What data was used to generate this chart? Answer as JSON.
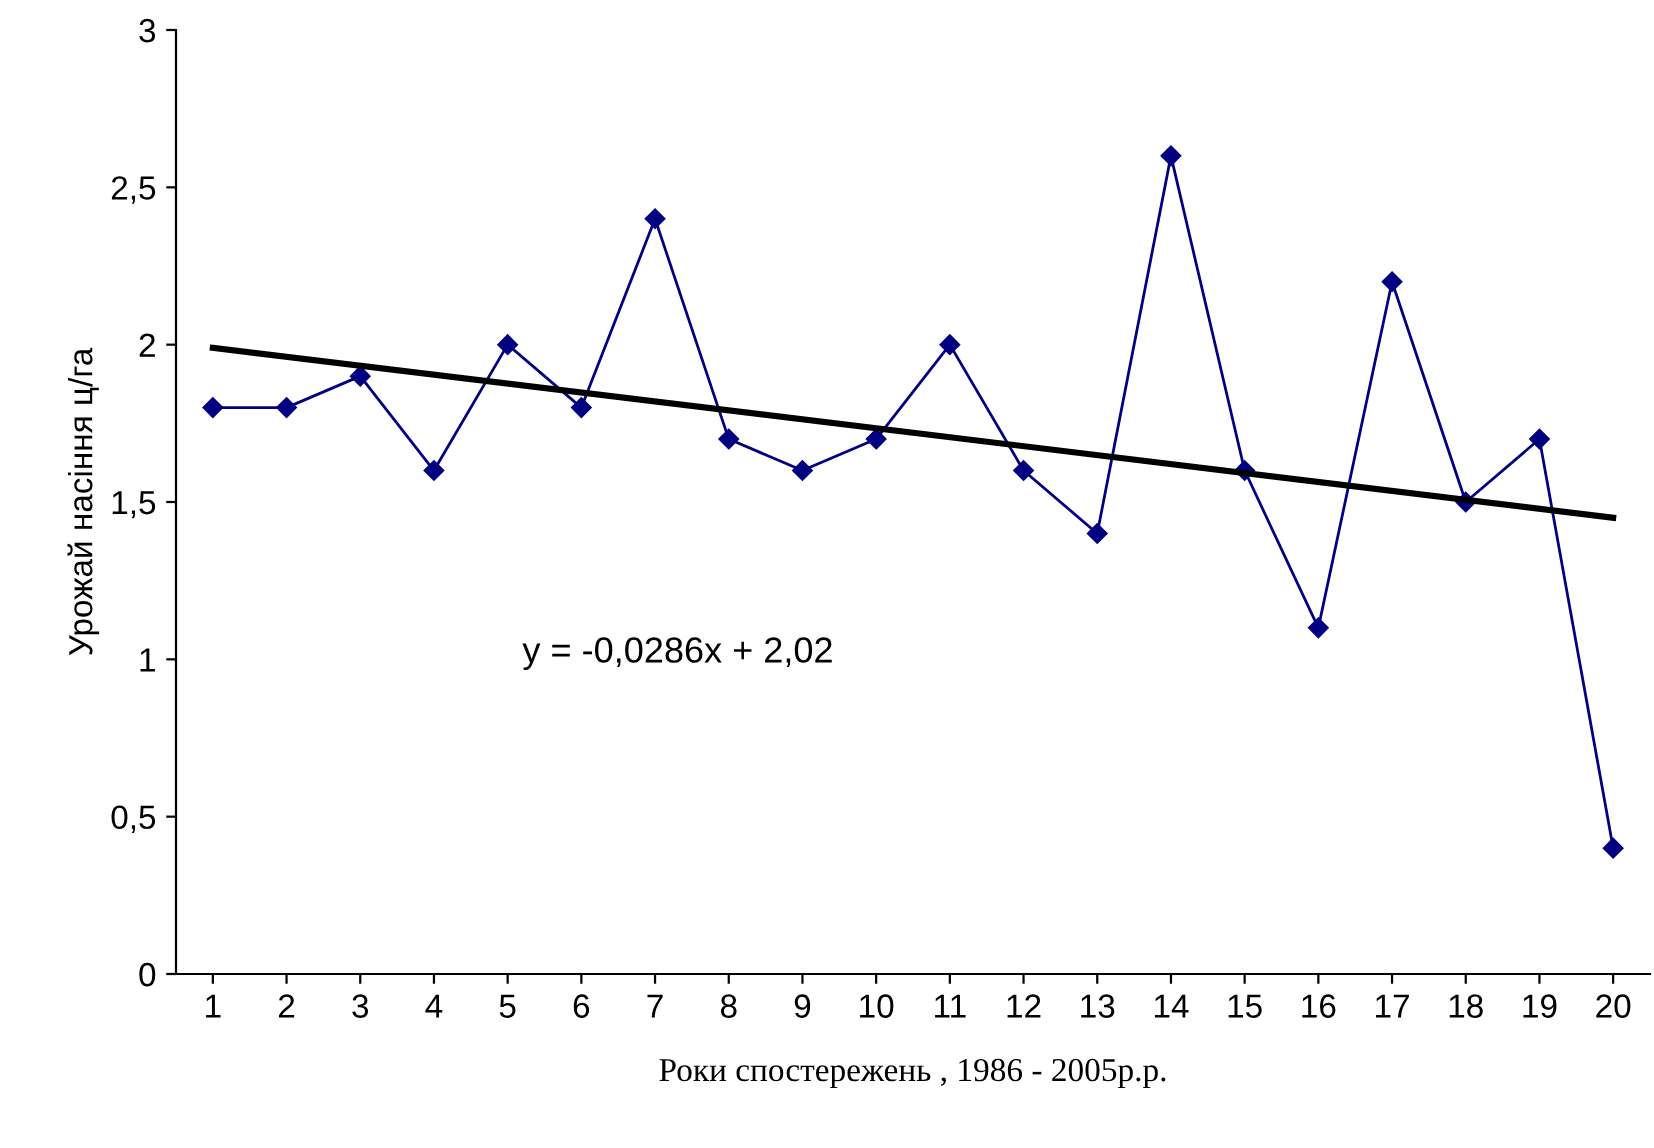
{
  "chart_data": {
    "type": "line",
    "xlabel": "Роки спостережень , 1986 - 2005р.р.",
    "ylabel": "Урожай насіння ц/га",
    "categories": [
      "1",
      "2",
      "3",
      "4",
      "5",
      "6",
      "7",
      "8",
      "9",
      "10",
      "11",
      "12",
      "13",
      "14",
      "15",
      "16",
      "17",
      "18",
      "19",
      "20"
    ],
    "series": [
      {
        "color": "#000080",
        "marker": "diamond",
        "values": [
          1.8,
          1.8,
          1.9,
          1.6,
          2.0,
          1.8,
          2.4,
          1.7,
          1.6,
          1.7,
          2.0,
          1.6,
          1.4,
          2.6,
          1.6,
          1.1,
          2.2,
          1.5,
          1.7,
          0.4
        ]
      },
      {
        "color": "#000000",
        "marker": "none",
        "x": [
          "1",
          "20"
        ],
        "values": [
          1.99,
          1.45
        ]
      }
    ],
    "ylim": [
      0,
      3
    ],
    "yticks": [
      0,
      {
        "value": 0.5,
        "label": "0,5"
      },
      1,
      {
        "value": 1.5,
        "label": "1,5"
      },
      2,
      {
        "value": 2.5,
        "label": "2,5"
      },
      3
    ],
    "annotations": [
      "y = -0,0286x + 2,02"
    ],
    "grid": false,
    "legend": false
  }
}
